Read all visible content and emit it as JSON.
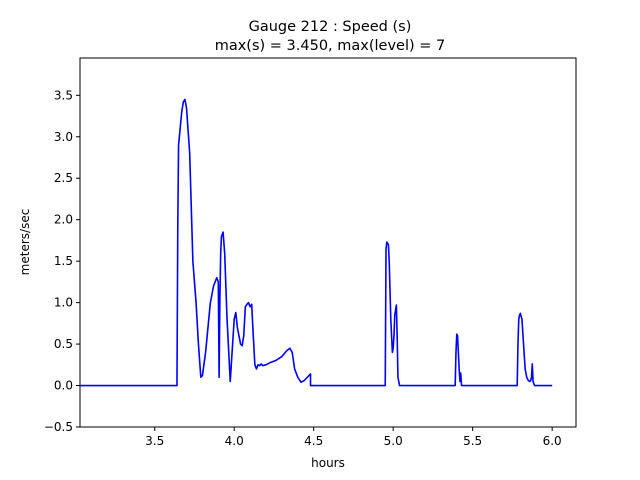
{
  "chart_data": {
    "type": "line",
    "title_line1": "Gauge 212 : Speed (s)",
    "title_line2": "max(s) =   3.450,    max(level) = 7",
    "xlabel": "hours",
    "ylabel": "meters/sec",
    "xlim": [
      3.03,
      6.15
    ],
    "ylim": [
      -0.5,
      3.95
    ],
    "x_ticks": [
      "3.5",
      "4.0",
      "4.5",
      "5.0",
      "5.5",
      "6.0"
    ],
    "y_ticks": [
      "−0.5",
      "0.0",
      "0.5",
      "1.0",
      "1.5",
      "2.0",
      "2.5",
      "3.0",
      "3.5"
    ],
    "grid": false,
    "line_color": "#0000ff",
    "series": [
      {
        "x": [
          3.03,
          3.64,
          3.645,
          3.65,
          3.655,
          3.66,
          3.67,
          3.68,
          3.69,
          3.7,
          3.72,
          3.74,
          3.76,
          3.775,
          3.79,
          3.8,
          3.82,
          3.85,
          3.87,
          3.89,
          3.9,
          3.905,
          3.91,
          3.915,
          3.92,
          3.93,
          3.94,
          3.955,
          3.975,
          3.99,
          4.0,
          4.01,
          4.02,
          4.03,
          4.04,
          4.05,
          4.06,
          4.07,
          4.08,
          4.09,
          4.1,
          4.11,
          4.12,
          4.13,
          4.14,
          4.15,
          4.16,
          4.17,
          4.18,
          4.2,
          4.23,
          4.26,
          4.3,
          4.33,
          4.35,
          4.365,
          4.38,
          4.4,
          4.42,
          4.44,
          4.46,
          4.475,
          4.48,
          4.48,
          4.5,
          4.95,
          4.955,
          4.96,
          4.97,
          4.975,
          4.985,
          4.995,
          5.0,
          5.005,
          5.01,
          5.02,
          5.025,
          5.03,
          5.04,
          5.05,
          5.05,
          5.39,
          5.395,
          5.4,
          5.405,
          5.41,
          5.415,
          5.42,
          5.425,
          5.43,
          5.43,
          5.78,
          5.785,
          5.79,
          5.795,
          5.8,
          5.81,
          5.82,
          5.83,
          5.84,
          5.85,
          5.86,
          5.865,
          5.87,
          5.875,
          5.88,
          5.885,
          5.89,
          5.9,
          6.0
        ],
        "y": [
          0.0,
          0.0,
          1.9,
          2.9,
          3.0,
          3.1,
          3.3,
          3.42,
          3.45,
          3.35,
          2.8,
          1.5,
          1.0,
          0.5,
          0.1,
          0.12,
          0.4,
          1.0,
          1.2,
          1.3,
          1.25,
          0.1,
          1.05,
          1.6,
          1.8,
          1.85,
          1.6,
          0.8,
          0.05,
          0.5,
          0.8,
          0.88,
          0.7,
          0.6,
          0.5,
          0.48,
          0.6,
          0.95,
          0.98,
          1.0,
          0.95,
          0.98,
          0.6,
          0.25,
          0.2,
          0.25,
          0.24,
          0.26,
          0.24,
          0.25,
          0.28,
          0.3,
          0.35,
          0.42,
          0.45,
          0.4,
          0.2,
          0.1,
          0.04,
          0.06,
          0.1,
          0.13,
          0.14,
          0.0,
          0.0,
          0.0,
          1.65,
          1.73,
          1.7,
          1.5,
          0.8,
          0.4,
          0.45,
          0.6,
          0.85,
          0.97,
          0.6,
          0.1,
          0.0,
          0.0,
          0.0,
          0.0,
          0.4,
          0.62,
          0.6,
          0.4,
          0.2,
          0.05,
          0.15,
          0.0,
          0.0,
          0.0,
          0.5,
          0.8,
          0.85,
          0.87,
          0.8,
          0.5,
          0.2,
          0.1,
          0.06,
          0.05,
          0.06,
          0.1,
          0.26,
          0.05,
          0.02,
          0.0,
          0.0,
          0.0
        ]
      }
    ]
  }
}
